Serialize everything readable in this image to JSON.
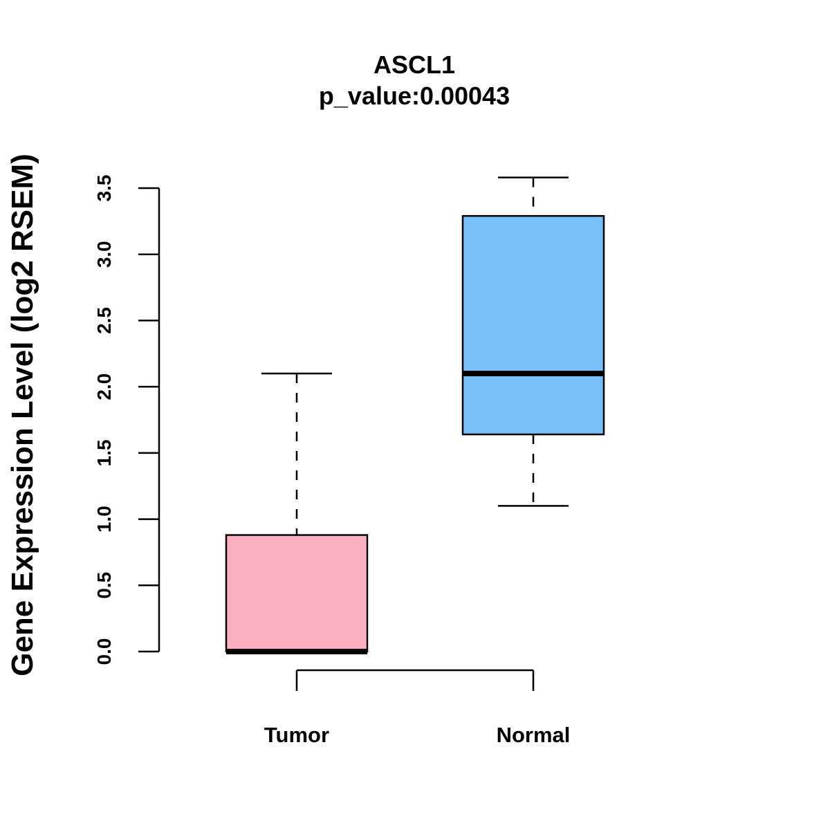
{
  "chart_data": {
    "type": "box",
    "title": "ASCL1",
    "subtitle": "p_value:0.00043",
    "xlabel": "",
    "ylabel": "Gene Expression Level (log2 RSEM)",
    "ylim": [
      0,
      3.5
    ],
    "yticks": [
      "0.0",
      "0.5",
      "1.0",
      "1.5",
      "2.0",
      "2.5",
      "3.0",
      "3.5"
    ],
    "grid": false,
    "categories": [
      "Tumor",
      "Normal"
    ],
    "boxes": [
      {
        "name": "Tumor",
        "min": 0.0,
        "q1": 0.0,
        "median": 0.0,
        "q3": 0.88,
        "max": 2.1,
        "color": "#FBB1C2"
      },
      {
        "name": "Normal",
        "min": 1.1,
        "q1": 1.64,
        "median": 2.1,
        "q3": 3.29,
        "max": 3.58,
        "color": "#79C0F8"
      }
    ]
  }
}
